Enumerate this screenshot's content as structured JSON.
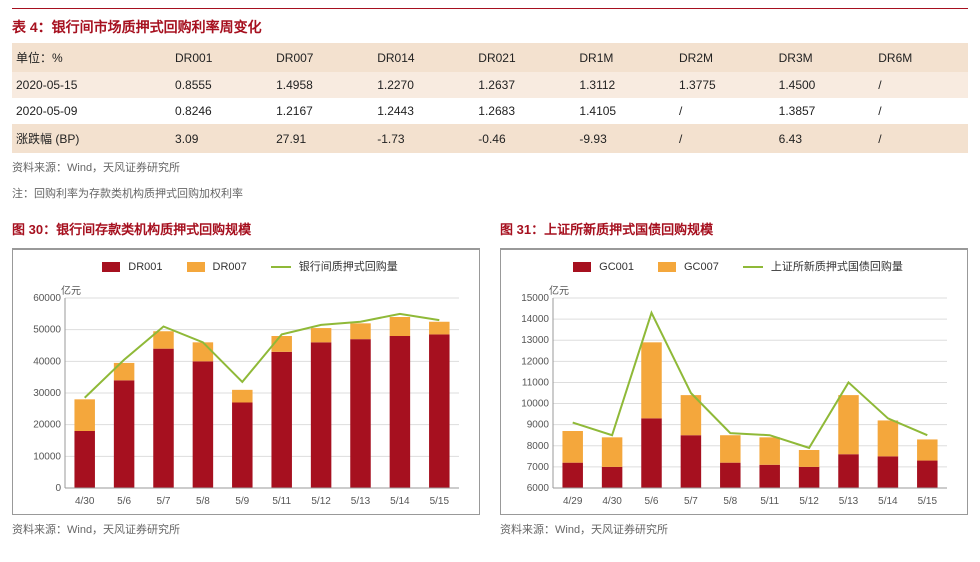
{
  "table": {
    "title": "表 4：银行间市场质押式回购利率周变化",
    "unit_label": "单位：%",
    "columns": [
      "DR001",
      "DR007",
      "DR014",
      "DR021",
      "DR1M",
      "DR2M",
      "DR3M",
      "DR6M"
    ],
    "rows": [
      {
        "label": "2020-05-15",
        "vals": [
          "0.8555",
          "1.4958",
          "1.2270",
          "1.2637",
          "1.3112",
          "1.3775",
          "1.4500",
          "/"
        ]
      },
      {
        "label": "2020-05-09",
        "vals": [
          "0.8246",
          "1.2167",
          "1.2443",
          "1.2683",
          "1.4105",
          "/",
          "1.3857",
          "/"
        ]
      },
      {
        "label": "涨跌幅 (BP)",
        "vals": [
          "3.09",
          "27.91",
          "-1.73",
          "-0.46",
          "-9.93",
          "/",
          "6.43",
          "/"
        ]
      }
    ],
    "source": "资料来源：Wind，天风证券研究所",
    "note": "注：回购利率为存款类机构质押式回购加权利率"
  },
  "chart1": {
    "title": "图 30：银行间存款类机构质押式回购规模",
    "type": "stacked-bar-with-line",
    "yunit": "亿元",
    "legend": [
      {
        "label": "DR001",
        "color": "#a6101f",
        "type": "bar"
      },
      {
        "label": "DR007",
        "color": "#f4a73c",
        "type": "bar"
      },
      {
        "label": "银行间质押式回购量",
        "color": "#8fb938",
        "type": "line"
      }
    ],
    "categories": [
      "4/30",
      "5/6",
      "5/7",
      "5/8",
      "5/9",
      "5/11",
      "5/12",
      "5/13",
      "5/14",
      "5/15"
    ],
    "series_bar1": [
      18000,
      34000,
      44000,
      40000,
      27000,
      43000,
      46000,
      47000,
      48000,
      48500
    ],
    "series_bar2": [
      10000,
      5500,
      5500,
      6000,
      4000,
      5000,
      4500,
      5000,
      6000,
      4000
    ],
    "series_line": [
      28500,
      40500,
      51000,
      46000,
      33500,
      48500,
      51500,
      52500,
      55000,
      53000
    ],
    "ylim": [
      0,
      60000
    ],
    "ytick_step": 10000,
    "bar_width": 0.52,
    "colors": {
      "bar1": "#a6101f",
      "bar2": "#f4a73c",
      "line": "#8fb938",
      "grid": "#dddddd",
      "axis": "#777777",
      "bg": "#ffffff"
    },
    "source": "资料来源：Wind，天风证券研究所"
  },
  "chart2": {
    "title": "图 31：上证所新质押式国债回购规模",
    "type": "stacked-bar-with-line",
    "yunit": "亿元",
    "legend": [
      {
        "label": "GC001",
        "color": "#a6101f",
        "type": "bar"
      },
      {
        "label": "GC007",
        "color": "#f4a73c",
        "type": "bar"
      },
      {
        "label": "上证所新质押式国债回购量",
        "color": "#8fb938",
        "type": "line"
      }
    ],
    "categories": [
      "4/29",
      "4/30",
      "5/6",
      "5/7",
      "5/8",
      "5/11",
      "5/12",
      "5/13",
      "5/14",
      "5/15"
    ],
    "series_bar1": [
      7200,
      7000,
      9300,
      8500,
      7200,
      7100,
      7000,
      7600,
      7500,
      7300
    ],
    "series_bar2": [
      1500,
      1400,
      3600,
      1900,
      1300,
      1300,
      800,
      2800,
      1700,
      1000
    ],
    "series_line": [
      9100,
      8500,
      14300,
      10500,
      8600,
      8500,
      7900,
      11000,
      9300,
      8500
    ],
    "ylim": [
      6000,
      15000
    ],
    "ytick_step": 1000,
    "bar_width": 0.52,
    "colors": {
      "bar1": "#a6101f",
      "bar2": "#f4a73c",
      "line": "#8fb938",
      "grid": "#dddddd",
      "axis": "#777777",
      "bg": "#ffffff"
    },
    "source": "资料来源：Wind，天风证券研究所"
  }
}
